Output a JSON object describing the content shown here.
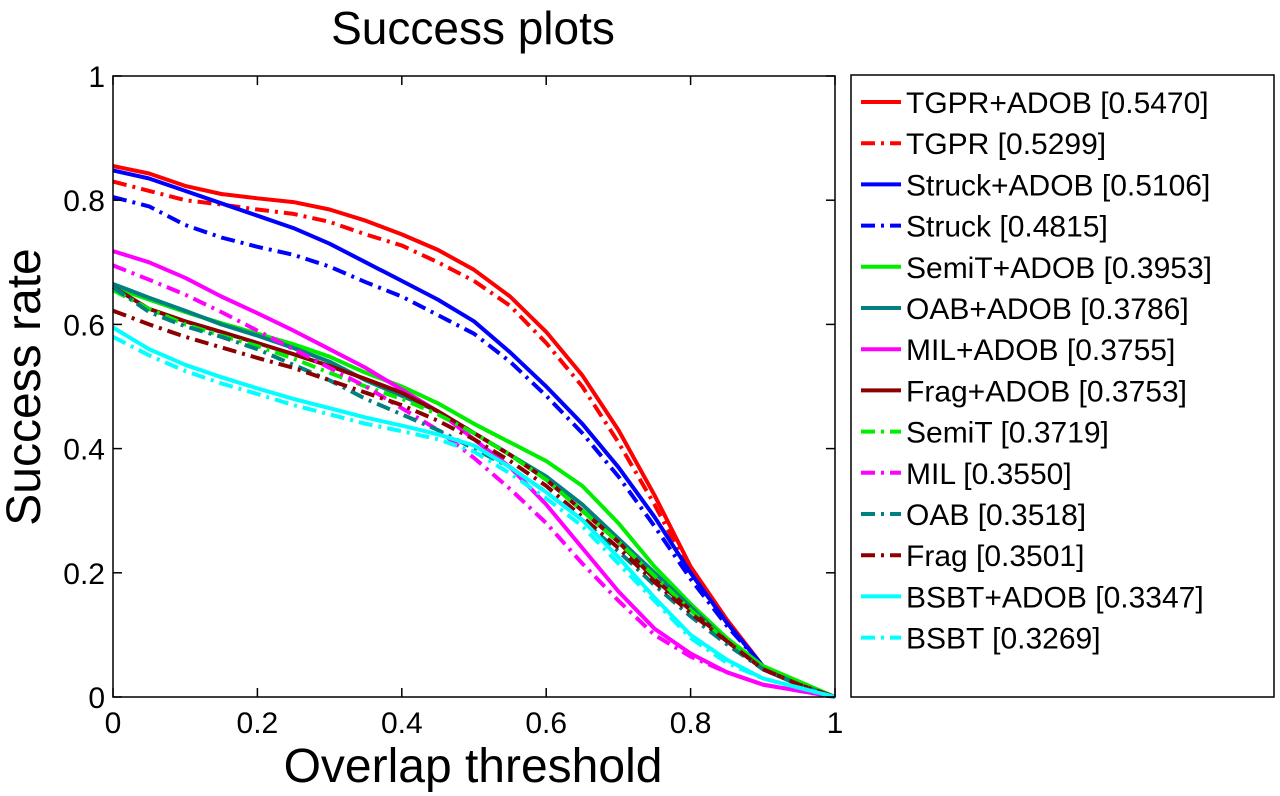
{
  "chart_data": {
    "type": "line",
    "title": "Success plots",
    "xlabel": "Overlap threshold",
    "ylabel": "Success rate",
    "xlim": [
      0,
      1
    ],
    "ylim": [
      0,
      1
    ],
    "xticks": [
      0,
      0.2,
      0.4,
      0.6,
      0.8,
      1
    ],
    "yticks": [
      0,
      0.2,
      0.4,
      0.6,
      0.8,
      1
    ],
    "xtick_labels": [
      "0",
      "0.2",
      "0.4",
      "0.6",
      "0.8",
      "1"
    ],
    "ytick_labels": [
      "0",
      "0.2",
      "0.4",
      "0.6",
      "0.8",
      "1"
    ],
    "grid": false,
    "legend_position": "outside-right",
    "x": [
      0,
      0.05,
      0.1,
      0.15,
      0.2,
      0.25,
      0.3,
      0.35,
      0.4,
      0.45,
      0.5,
      0.55,
      0.6,
      0.65,
      0.7,
      0.75,
      0.8,
      0.85,
      0.9,
      0.95,
      1.0
    ],
    "series": [
      {
        "name": "TGPR+ADOB [0.5470]",
        "color": "#ff0000",
        "style": "solid",
        "values": [
          0.855,
          0.843,
          0.823,
          0.81,
          0.803,
          0.797,
          0.785,
          0.767,
          0.745,
          0.72,
          0.688,
          0.645,
          0.588,
          0.518,
          0.43,
          0.325,
          0.21,
          0.125,
          0.05,
          0.02,
          0.0
        ]
      },
      {
        "name": "TGPR [0.5299]",
        "color": "#ff0000",
        "style": "dashdot",
        "values": [
          0.83,
          0.815,
          0.8,
          0.793,
          0.785,
          0.778,
          0.765,
          0.745,
          0.727,
          0.7,
          0.67,
          0.63,
          0.57,
          0.5,
          0.41,
          0.31,
          0.2,
          0.12,
          0.05,
          0.02,
          0.0
        ]
      },
      {
        "name": "Struck+ADOB [0.5106]",
        "color": "#0000ff",
        "style": "solid",
        "values": [
          0.848,
          0.835,
          0.815,
          0.795,
          0.775,
          0.755,
          0.73,
          0.7,
          0.67,
          0.64,
          0.605,
          0.555,
          0.5,
          0.44,
          0.37,
          0.29,
          0.2,
          0.12,
          0.05,
          0.02,
          0.0
        ]
      },
      {
        "name": "Struck [0.4815]",
        "color": "#0000ff",
        "style": "dashdot",
        "values": [
          0.805,
          0.79,
          0.76,
          0.74,
          0.725,
          0.712,
          0.693,
          0.668,
          0.645,
          0.615,
          0.585,
          0.54,
          0.485,
          0.425,
          0.355,
          0.275,
          0.19,
          0.115,
          0.05,
          0.02,
          0.0
        ]
      },
      {
        "name": "SemiT+ADOB [0.3953]",
        "color": "#00ee00",
        "style": "solid",
        "values": [
          0.66,
          0.64,
          0.62,
          0.602,
          0.585,
          0.568,
          0.548,
          0.522,
          0.5,
          0.473,
          0.44,
          0.41,
          0.38,
          0.34,
          0.28,
          0.21,
          0.15,
          0.095,
          0.05,
          0.025,
          0.0
        ]
      },
      {
        "name": "OAB+ADOB [0.3786]",
        "color": "#008080",
        "style": "solid",
        "values": [
          0.665,
          0.643,
          0.622,
          0.6,
          0.582,
          0.562,
          0.54,
          0.51,
          0.485,
          0.46,
          0.425,
          0.39,
          0.355,
          0.31,
          0.255,
          0.2,
          0.145,
          0.09,
          0.045,
          0.02,
          0.0
        ]
      },
      {
        "name": "MIL+ADOB [0.3755]",
        "color": "#ff00ff",
        "style": "solid",
        "values": [
          0.718,
          0.7,
          0.675,
          0.645,
          0.618,
          0.59,
          0.56,
          0.53,
          0.495,
          0.46,
          0.415,
          0.37,
          0.31,
          0.24,
          0.17,
          0.11,
          0.07,
          0.04,
          0.02,
          0.01,
          0.0
        ]
      },
      {
        "name": "Frag+ADOB [0.3753]",
        "color": "#8b0000",
        "style": "solid",
        "values": [
          0.66,
          0.625,
          0.605,
          0.588,
          0.57,
          0.552,
          0.533,
          0.512,
          0.49,
          0.46,
          0.425,
          0.39,
          0.35,
          0.3,
          0.25,
          0.19,
          0.14,
          0.09,
          0.045,
          0.02,
          0.0
        ]
      },
      {
        "name": "SemiT [0.3719]",
        "color": "#00ee00",
        "style": "dashdot",
        "values": [
          0.655,
          0.625,
          0.6,
          0.582,
          0.565,
          0.545,
          0.522,
          0.5,
          0.48,
          0.455,
          0.425,
          0.39,
          0.35,
          0.3,
          0.25,
          0.195,
          0.14,
          0.09,
          0.045,
          0.02,
          0.0
        ]
      },
      {
        "name": "MIL [0.3550]",
        "color": "#ff00ff",
        "style": "dashdot",
        "values": [
          0.695,
          0.672,
          0.648,
          0.62,
          0.59,
          0.56,
          0.53,
          0.5,
          0.465,
          0.43,
          0.385,
          0.335,
          0.28,
          0.215,
          0.155,
          0.1,
          0.065,
          0.04,
          0.02,
          0.01,
          0.0
        ]
      },
      {
        "name": "OAB [0.3518]",
        "color": "#008080",
        "style": "dashdot",
        "values": [
          0.66,
          0.62,
          0.597,
          0.58,
          0.56,
          0.535,
          0.51,
          0.48,
          0.455,
          0.43,
          0.4,
          0.37,
          0.33,
          0.285,
          0.235,
          0.18,
          0.13,
          0.085,
          0.045,
          0.02,
          0.0
        ]
      },
      {
        "name": "Frag [0.3501]",
        "color": "#8b0000",
        "style": "dashdot",
        "values": [
          0.622,
          0.6,
          0.58,
          0.563,
          0.546,
          0.53,
          0.51,
          0.49,
          0.47,
          0.445,
          0.415,
          0.38,
          0.34,
          0.29,
          0.24,
          0.185,
          0.135,
          0.09,
          0.045,
          0.02,
          0.0
        ]
      },
      {
        "name": "BSBT+ADOB [0.3347]",
        "color": "#00ffff",
        "style": "solid",
        "values": [
          0.595,
          0.56,
          0.535,
          0.515,
          0.497,
          0.48,
          0.465,
          0.45,
          0.437,
          0.423,
          0.405,
          0.37,
          0.33,
          0.285,
          0.225,
          0.16,
          0.1,
          0.06,
          0.03,
          0.015,
          0.0
        ]
      },
      {
        "name": "BSBT [0.3269]",
        "color": "#00ffff",
        "style": "dashdot",
        "values": [
          0.58,
          0.55,
          0.525,
          0.505,
          0.488,
          0.47,
          0.455,
          0.44,
          0.428,
          0.415,
          0.395,
          0.36,
          0.32,
          0.275,
          0.215,
          0.155,
          0.095,
          0.055,
          0.03,
          0.015,
          0.0
        ]
      }
    ]
  }
}
